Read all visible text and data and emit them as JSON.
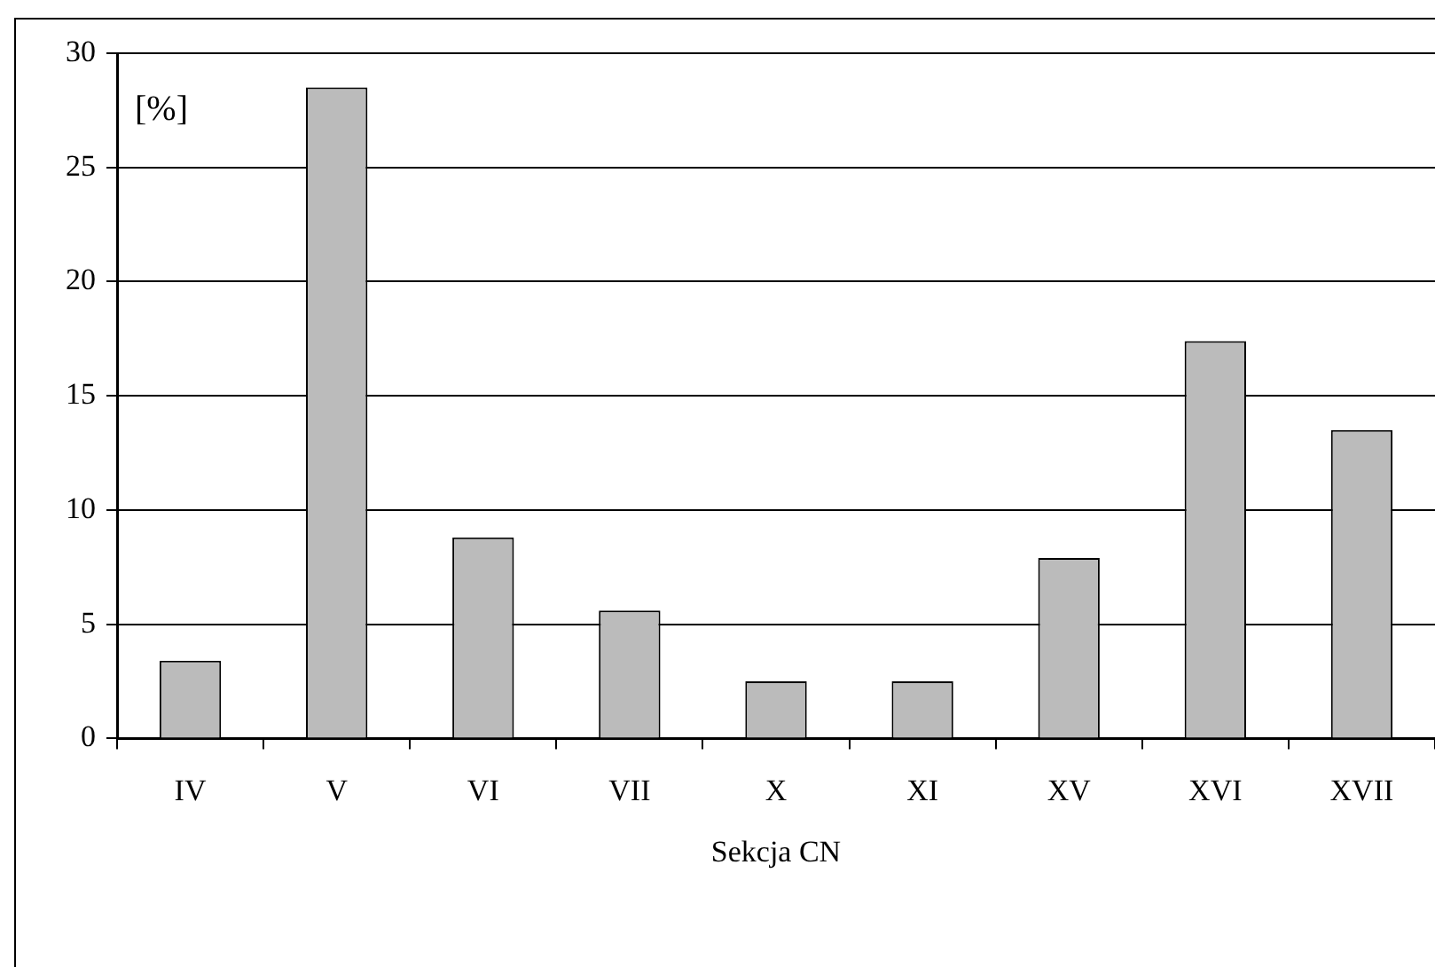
{
  "chart_data": {
    "type": "bar",
    "ylabel": "[%]",
    "xlabel": "Sekcja CN",
    "categories": [
      "IV",
      "V",
      "VI",
      "VII",
      "X",
      "XI",
      "XV",
      "XVI",
      "XVII"
    ],
    "values": [
      3.4,
      28.5,
      8.8,
      5.6,
      2.5,
      2.5,
      7.9,
      17.4,
      13.5
    ],
    "color": "#bbbbbb",
    "ylim": [
      0,
      30
    ],
    "yticks": [
      0,
      5,
      10,
      15,
      20,
      25,
      30
    ],
    "grid": "y",
    "legend": false
  }
}
